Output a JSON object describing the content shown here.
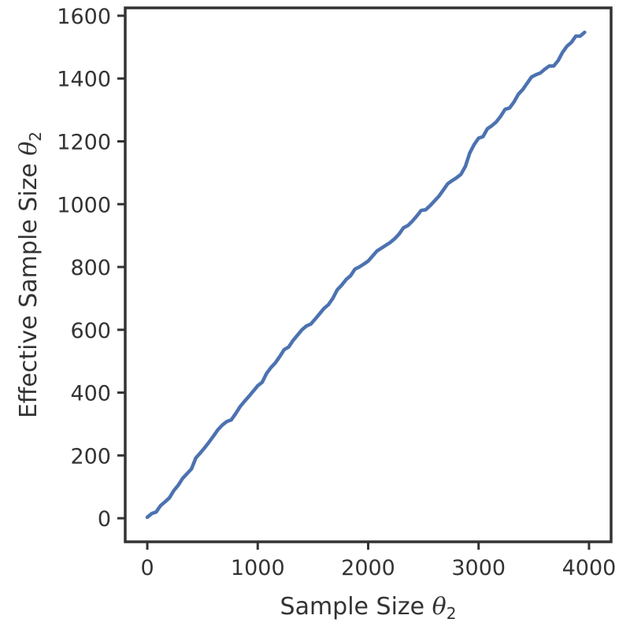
{
  "chart_data": {
    "type": "line",
    "title": "",
    "xlabel_parts": {
      "prefix": "Sample Size ",
      "symbol": "θ",
      "subscript": "2"
    },
    "ylabel_parts": {
      "prefix": "Effective Sample Size ",
      "symbol": "θ",
      "subscript": "2"
    },
    "xlim": [
      -200,
      4200
    ],
    "ylim": [
      -75,
      1625
    ],
    "xticks": [
      0,
      1000,
      2000,
      3000,
      4000
    ],
    "yticks": [
      0,
      200,
      400,
      600,
      800,
      1000,
      1200,
      1400,
      1600
    ],
    "grid": false,
    "legend": "none",
    "series": [
      {
        "color": "#4c72b0",
        "x": [
          0,
          40,
          80,
          120,
          160,
          200,
          240,
          280,
          320,
          360,
          400,
          440,
          480,
          520,
          560,
          600,
          640,
          680,
          720,
          760,
          800,
          840,
          880,
          920,
          960,
          1000,
          1040,
          1080,
          1120,
          1160,
          1200,
          1240,
          1280,
          1320,
          1360,
          1400,
          1440,
          1480,
          1520,
          1560,
          1600,
          1640,
          1680,
          1720,
          1760,
          1800,
          1840,
          1880,
          1920,
          1960,
          2000,
          2040,
          2080,
          2120,
          2160,
          2200,
          2240,
          2280,
          2320,
          2360,
          2400,
          2440,
          2480,
          2520,
          2560,
          2600,
          2640,
          2680,
          2720,
          2760,
          2800,
          2840,
          2880,
          2920,
          2960,
          3000,
          3040,
          3080,
          3120,
          3160,
          3200,
          3240,
          3280,
          3320,
          3360,
          3400,
          3440,
          3480,
          3520,
          3560,
          3600,
          3640,
          3680,
          3720,
          3760,
          3800,
          3840,
          3880,
          3920,
          3960
        ],
        "y": [
          3,
          15,
          20,
          40,
          52,
          65,
          88,
          105,
          127,
          142,
          157,
          192,
          208,
          225,
          243,
          262,
          282,
          297,
          308,
          313,
          333,
          355,
          372,
          388,
          405,
          422,
          433,
          461,
          480,
          495,
          515,
          537,
          545,
          566,
          583,
          600,
          612,
          618,
          634,
          651,
          668,
          680,
          700,
          727,
          742,
          760,
          772,
          793,
          800,
          809,
          819,
          835,
          851,
          860,
          869,
          878,
          890,
          905,
          925,
          932,
          946,
          962,
          980,
          982,
          995,
          1010,
          1025,
          1045,
          1065,
          1075,
          1084,
          1095,
          1120,
          1163,
          1190,
          1210,
          1215,
          1240,
          1250,
          1262,
          1280,
          1302,
          1306,
          1325,
          1350,
          1365,
          1385,
          1405,
          1412,
          1418,
          1430,
          1440,
          1440,
          1457,
          1483,
          1503,
          1515,
          1535,
          1535,
          1547
        ]
      }
    ]
  }
}
